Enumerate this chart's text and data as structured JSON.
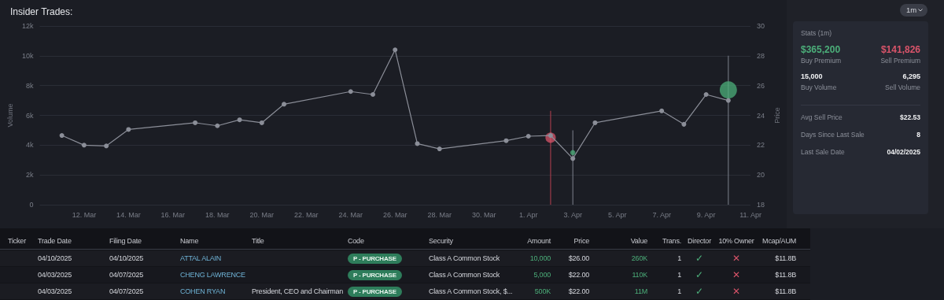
{
  "chart_data": [
    {
      "type": "line",
      "title": "Insider Trades:",
      "ylabel": "Volume",
      "y2label": "Price",
      "series": [
        {
          "type": "line",
          "axis": "y2",
          "color": "#8b8e98",
          "x": [
            "2025-03-11",
            "2025-03-12",
            "2025-03-13",
            "2025-03-14",
            "2025-03-17",
            "2025-03-18",
            "2025-03-19",
            "2025-03-20",
            "2025-03-21",
            "2025-03-24",
            "2025-03-25",
            "2025-03-26",
            "2025-03-27",
            "2025-03-28",
            "2025-03-31",
            "2025-04-01",
            "2025-04-02",
            "2025-04-03",
            "2025-04-04",
            "2025-04-07",
            "2025-04-08",
            "2025-04-09",
            "2025-04-10"
          ],
          "values": [
            22.65,
            22.0,
            21.95,
            23.05,
            23.5,
            23.3,
            23.7,
            23.5,
            24.75,
            25.6,
            25.4,
            28.4,
            22.1,
            21.75,
            22.3,
            22.6,
            22.65,
            21.1,
            23.5,
            24.3,
            23.4,
            25.4,
            25.0
          ]
        },
        {
          "type": "bar",
          "axis": "y",
          "colors": [
            "#b8404f",
            "#7d828c",
            "#7d828c"
          ],
          "x": [
            "2025-04-02",
            "2025-04-03",
            "2025-04-10"
          ],
          "values": [
            6300,
            5000,
            10000
          ]
        },
        {
          "type": "bubble",
          "axis": "y2",
          "colors": [
            "#d9546a",
            "#4caf7a",
            "#4caf7a"
          ],
          "x": [
            "2025-04-02",
            "2025-04-03",
            "2025-04-10"
          ],
          "values": [
            22.5,
            21.5,
            25.7
          ],
          "sizes": [
            0.36,
            0.09,
            1
          ]
        }
      ],
      "marker": "circle",
      "grid": "y",
      "xlim": [
        "2025-03-10",
        "2025-04-11"
      ],
      "xticks": [
        {
          "value": "2025-03-12",
          "label": "12. Mar"
        },
        {
          "value": "2025-03-14",
          "label": "14. Mar"
        },
        {
          "value": "2025-03-16",
          "label": "16. Mar"
        },
        {
          "value": "2025-03-18",
          "label": "18. Mar"
        },
        {
          "value": "2025-03-20",
          "label": "20. Mar"
        },
        {
          "value": "2025-03-22",
          "label": "22. Mar"
        },
        {
          "value": "2025-03-24",
          "label": "24. Mar"
        },
        {
          "value": "2025-03-26",
          "label": "26. Mar"
        },
        {
          "value": "2025-03-28",
          "label": "28. Mar"
        },
        {
          "value": "2025-03-30",
          "label": "30. Mar"
        },
        {
          "value": "2025-04-01",
          "label": "1. Apr"
        },
        {
          "value": "2025-04-03",
          "label": "3. Apr"
        },
        {
          "value": "2025-04-05",
          "label": "5. Apr"
        },
        {
          "value": "2025-04-07",
          "label": "7. Apr"
        },
        {
          "value": "2025-04-09",
          "label": "9. Apr"
        },
        {
          "value": "2025-04-11",
          "label": "11. Apr"
        }
      ],
      "ylim": [
        0,
        12000
      ],
      "yticks": [
        0,
        {
          "value": 2000,
          "label": "2k"
        },
        {
          "value": 4000,
          "label": "4k"
        },
        {
          "value": 6000,
          "label": "6k"
        },
        {
          "value": 8000,
          "label": "8k"
        },
        {
          "value": 10000,
          "label": "10k"
        },
        {
          "value": 12000,
          "label": "12k"
        }
      ],
      "y2lim": [
        18,
        30
      ],
      "y2ticks": [
        18,
        20,
        22,
        24,
        26,
        28,
        30
      ]
    },
    {
      "type": "other",
      "title": "Stats (1m)",
      "annotations": [
        "1m",
        "$365,200",
        "Buy Premium",
        "$141,826",
        "Sell Premium",
        "15,000",
        "Buy Volume",
        "6,295",
        "Sell Volume",
        "Avg Sell Price",
        "$22.53",
        "Days Since Last Sale",
        "8",
        "Last Sale Date",
        "04/02/2025"
      ]
    },
    {
      "type": "other",
      "categories": [
        "Ticker",
        "Trade Date",
        "Filing Date",
        "Name",
        "Title",
        "Code",
        "Security",
        "Amount",
        "Price",
        "Value",
        "Trans.",
        "Director",
        "10% Owner",
        "Mcap/AUM"
      ],
      "cell_labels": [
        [
          null,
          "04/10/2025",
          "04/10/2025",
          "ATTAL ALAIN",
          null,
          "P - PURCHASE",
          "Class A Common Stock",
          "10,000",
          "$26.00",
          "260K",
          "1",
          "✓",
          "✕",
          "$11.8B"
        ],
        [
          null,
          "04/03/2025",
          "04/07/2025",
          "CHENG LAWRENCE",
          null,
          "P - PURCHASE",
          "Class A Common Stock",
          "5,000",
          "$22.00",
          "110K",
          "1",
          "✓",
          "✕",
          "$11.8B"
        ],
        [
          null,
          "04/03/2025",
          "04/07/2025",
          "COHEN RYAN",
          "President, CEO and Chairman",
          "P - PURCHASE",
          "Class A Common Stock, $...",
          "500K",
          "$22.00",
          "11M",
          "1",
          "✓",
          "✕",
          "$11.8B"
        ]
      ]
    }
  ]
}
